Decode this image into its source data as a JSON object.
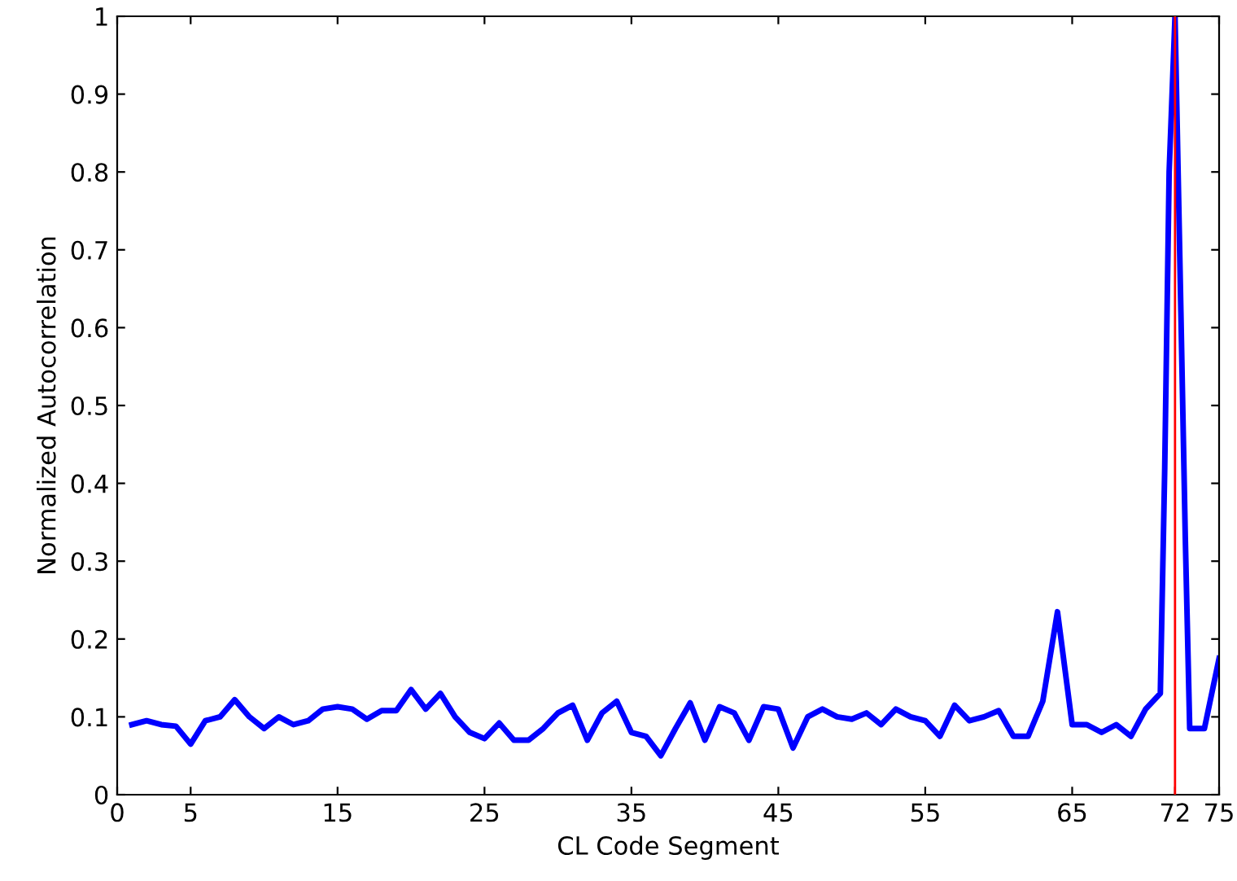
{
  "chart_data": {
    "type": "line",
    "xlabel": "CL Code Segment",
    "ylabel": "Normalized Autocorrelation",
    "x": [
      1,
      2,
      3,
      4,
      5,
      6,
      7,
      8,
      9,
      10,
      11,
      12,
      13,
      14,
      15,
      16,
      17,
      18,
      19,
      20,
      21,
      22,
      23,
      24,
      25,
      26,
      27,
      28,
      29,
      30,
      31,
      32,
      33,
      34,
      35,
      36,
      37,
      38,
      39,
      40,
      41,
      42,
      43,
      44,
      45,
      46,
      47,
      48,
      49,
      50,
      51,
      52,
      53,
      54,
      55,
      56,
      57,
      58,
      59,
      60,
      61,
      62,
      63,
      64,
      65,
      66,
      67,
      68,
      69,
      70,
      71,
      71.3,
      71.6,
      72,
      72.4,
      72.7,
      73,
      74,
      75
    ],
    "series": [
      {
        "color": "#0000ff",
        "values": [
          0.09,
          0.095,
          0.09,
          0.088,
          0.065,
          0.095,
          0.1,
          0.122,
          0.1,
          0.085,
          0.1,
          0.09,
          0.095,
          0.11,
          0.113,
          0.11,
          0.097,
          0.108,
          0.108,
          0.135,
          0.11,
          0.13,
          0.1,
          0.08,
          0.072,
          0.092,
          0.07,
          0.07,
          0.085,
          0.105,
          0.115,
          0.07,
          0.105,
          0.12,
          0.08,
          0.075,
          0.05,
          0.085,
          0.118,
          0.07,
          0.113,
          0.105,
          0.07,
          0.113,
          0.11,
          0.06,
          0.1,
          0.11,
          0.1,
          0.097,
          0.105,
          0.09,
          0.11,
          0.1,
          0.095,
          0.075,
          0.115,
          0.095,
          0.1,
          0.108,
          0.075,
          0.075,
          0.12,
          0.235,
          0.09,
          0.09,
          0.08,
          0.09,
          0.075,
          0.11,
          0.13,
          0.42,
          0.8,
          1.0,
          0.62,
          0.33,
          0.085,
          0.085,
          0.175
        ]
      }
    ],
    "ref_lines": [
      {
        "axis": "x",
        "value": 72,
        "color": "#ff0000"
      }
    ],
    "xlim": [
      0,
      75
    ],
    "xticks": [
      0,
      5,
      15,
      25,
      35,
      45,
      55,
      65,
      72,
      75
    ],
    "ylim": [
      0,
      1
    ],
    "yticks": [
      0,
      0.1,
      0.2,
      0.3,
      0.4,
      0.5,
      0.6,
      0.7,
      0.8,
      0.9,
      1
    ],
    "grid": false,
    "line_style": "solid",
    "marker": "none"
  }
}
